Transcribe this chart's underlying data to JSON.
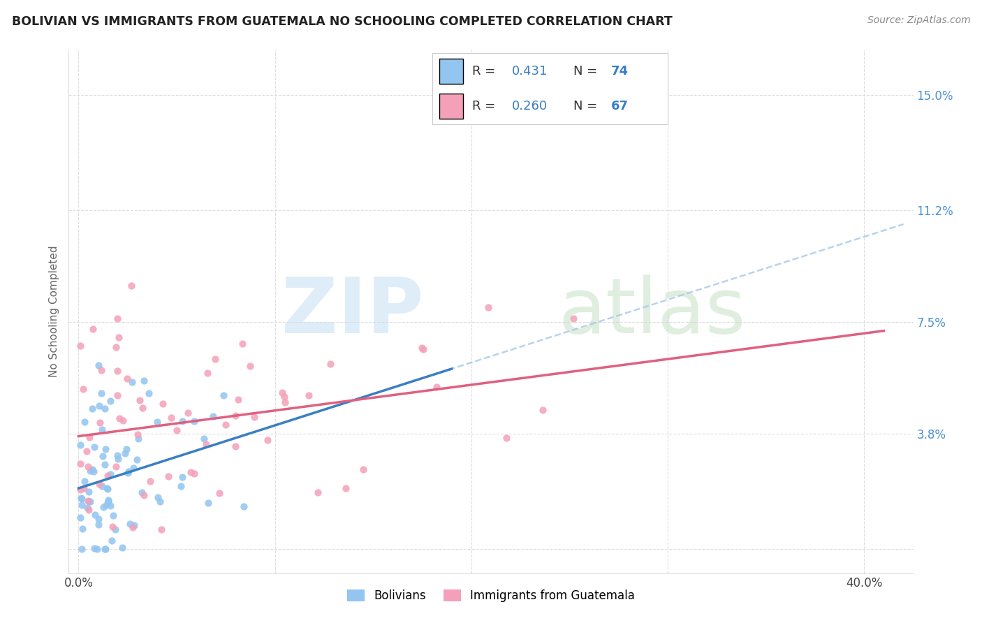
{
  "title": "BOLIVIAN VS IMMIGRANTS FROM GUATEMALA NO SCHOOLING COMPLETED CORRELATION CHART",
  "source": "Source: ZipAtlas.com",
  "ylabel": "No Schooling Completed",
  "ytick_vals": [
    0.0,
    0.038,
    0.075,
    0.112,
    0.15
  ],
  "ytick_labels": [
    "",
    "3.8%",
    "7.5%",
    "11.2%",
    "15.0%"
  ],
  "xtick_vals": [
    0.0,
    0.1,
    0.2,
    0.3,
    0.4
  ],
  "xtick_labels": [
    "0.0%",
    "",
    "",
    "",
    "40.0%"
  ],
  "xlim": [
    -0.005,
    0.425
  ],
  "ylim": [
    -0.008,
    0.165
  ],
  "bolivia_color": "#92c5f0",
  "guatemala_color": "#f4a0b8",
  "trend_blue_solid": "#3a7fc1",
  "trend_blue_dash": "#a8c8e8",
  "trend_pink_solid": "#e06080",
  "R_bolivia": 0.431,
  "N_bolivia": 74,
  "R_guatemala": 0.26,
  "N_guatemala": 67,
  "grid_color": "#dddddd",
  "spine_color": "#dddddd",
  "right_tick_color": "#4a90d9",
  "title_color": "#222222",
  "source_color": "#888888",
  "ylabel_color": "#666666"
}
